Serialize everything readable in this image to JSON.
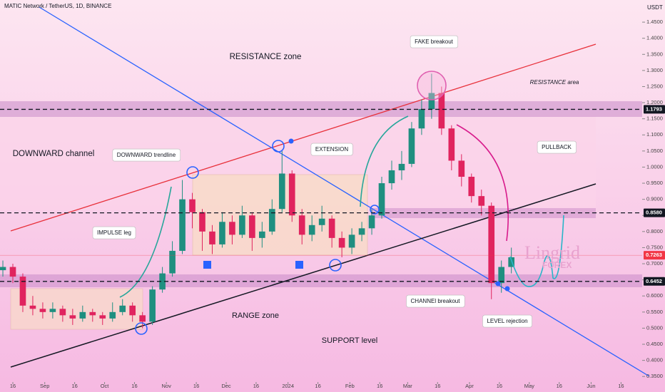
{
  "header": {
    "symbol": "MATIC Network / TetherUS, 1D, BINANCE",
    "currency": "USDT"
  },
  "watermark": {
    "brand": "Lingrid",
    "sub": "FOREX"
  },
  "chart_data": {
    "type": "candlestick",
    "x": [
      -5,
      0,
      5,
      10,
      15,
      20,
      25,
      30,
      35,
      40,
      45,
      50,
      55,
      60,
      65,
      70,
      75,
      80,
      85,
      90,
      95,
      100,
      105,
      110,
      115,
      120,
      125,
      130,
      135,
      140,
      145,
      150,
      155,
      160,
      165,
      170,
      175,
      180,
      185,
      190,
      195,
      200,
      205,
      210,
      215,
      220,
      225,
      230,
      235,
      240,
      245,
      250
    ],
    "open": [
      0.68,
      0.69,
      0.66,
      0.57,
      0.56,
      0.55,
      0.56,
      0.54,
      0.53,
      0.55,
      0.54,
      0.53,
      0.55,
      0.57,
      0.54,
      0.52,
      0.62,
      0.67,
      0.74,
      0.9,
      0.86,
      0.8,
      0.76,
      0.83,
      0.79,
      0.85,
      0.78,
      0.8,
      0.87,
      0.98,
      0.85,
      0.79,
      0.82,
      0.84,
      0.78,
      0.75,
      0.79,
      0.81,
      0.85,
      0.95,
      0.99,
      1.01,
      1.12,
      1.18,
      1.23,
      1.12,
      1.02,
      0.97,
      0.91,
      0.88,
      0.64,
      0.69
    ],
    "high": [
      0.71,
      0.7,
      0.67,
      0.6,
      0.58,
      0.58,
      0.57,
      0.56,
      0.57,
      0.56,
      0.55,
      0.58,
      0.59,
      0.58,
      0.55,
      0.63,
      0.69,
      0.77,
      0.96,
      0.92,
      0.87,
      0.82,
      0.86,
      0.85,
      0.88,
      0.86,
      0.83,
      0.9,
      1.05,
      0.99,
      0.87,
      0.85,
      0.88,
      0.85,
      0.8,
      0.81,
      0.83,
      0.87,
      0.97,
      1.02,
      1.05,
      1.14,
      1.21,
      1.29,
      1.25,
      1.13,
      1.04,
      0.98,
      0.93,
      0.89,
      0.71,
      0.75
    ],
    "low": [
      0.66,
      0.64,
      0.55,
      0.54,
      0.53,
      0.53,
      0.52,
      0.51,
      0.52,
      0.52,
      0.51,
      0.52,
      0.54,
      0.52,
      0.5,
      0.51,
      0.61,
      0.66,
      0.73,
      0.81,
      0.74,
      0.73,
      0.75,
      0.76,
      0.78,
      0.74,
      0.75,
      0.79,
      0.86,
      0.83,
      0.76,
      0.77,
      0.8,
      0.75,
      0.72,
      0.73,
      0.77,
      0.79,
      0.84,
      0.93,
      0.96,
      1.0,
      1.1,
      1.15,
      1.1,
      0.99,
      0.94,
      0.89,
      0.85,
      0.59,
      0.61,
      0.67
    ],
    "close": [
      0.69,
      0.66,
      0.57,
      0.56,
      0.55,
      0.56,
      0.54,
      0.53,
      0.55,
      0.54,
      0.53,
      0.55,
      0.57,
      0.54,
      0.52,
      0.62,
      0.67,
      0.74,
      0.9,
      0.86,
      0.8,
      0.76,
      0.83,
      0.79,
      0.85,
      0.78,
      0.8,
      0.87,
      0.98,
      0.85,
      0.79,
      0.82,
      0.84,
      0.78,
      0.75,
      0.79,
      0.81,
      0.85,
      0.95,
      0.99,
      1.01,
      1.12,
      1.18,
      1.23,
      1.12,
      1.02,
      0.97,
      0.91,
      0.88,
      0.64,
      0.69,
      0.72
    ],
    "up_color": "#1f8f80",
    "down_color": "#e0245e",
    "xlim": [
      -6.44,
      315.6
    ],
    "xticks": [
      {
        "value": 0,
        "label": "16"
      },
      {
        "value": 16,
        "label": "Sep"
      },
      {
        "value": 31,
        "label": "16"
      },
      {
        "value": 46,
        "label": "Oct"
      },
      {
        "value": 61,
        "label": "16"
      },
      {
        "value": 77,
        "label": "Nov"
      },
      {
        "value": 92,
        "label": "16"
      },
      {
        "value": 107,
        "label": "Dec"
      },
      {
        "value": 122,
        "label": "16"
      },
      {
        "value": 138,
        "label": "2024"
      },
      {
        "value": 153,
        "label": "16"
      },
      {
        "value": 169,
        "label": "Feb"
      },
      {
        "value": 184,
        "label": "16"
      },
      {
        "value": 198,
        "label": "Mar"
      },
      {
        "value": 213,
        "label": "16"
      },
      {
        "value": 229,
        "label": "Apr"
      },
      {
        "value": 244,
        "label": "16"
      },
      {
        "value": 259,
        "label": "May"
      },
      {
        "value": 274,
        "label": "16"
      },
      {
        "value": 290,
        "label": "Jun"
      },
      {
        "value": 305,
        "label": "16"
      }
    ],
    "ylim": [
      0.335,
      1.49
    ],
    "yticks": [
      {
        "value": 0.35,
        "label": "0.3500"
      },
      {
        "value": 0.4,
        "label": "0.4000"
      },
      {
        "value": 0.45,
        "label": "0.4500"
      },
      {
        "value": 0.5,
        "label": "0.5000"
      },
      {
        "value": 0.55,
        "label": "0.5500"
      },
      {
        "value": 0.6,
        "label": "0.6000"
      },
      {
        "value": 0.65,
        "label": "0.6500"
      },
      {
        "value": 0.7,
        "label": "0.7000"
      },
      {
        "value": 0.75,
        "label": "0.7500"
      },
      {
        "value": 0.8,
        "label": "0.8000"
      },
      {
        "value": 0.85,
        "label": "0.8500"
      },
      {
        "value": 0.9,
        "label": "0.9000"
      },
      {
        "value": 0.95,
        "label": "0.9500"
      },
      {
        "value": 1.0,
        "label": "1.0000"
      },
      {
        "value": 1.05,
        "label": "1.0500"
      },
      {
        "value": 1.1,
        "label": "1.1000"
      },
      {
        "value": 1.15,
        "label": "1.1500"
      },
      {
        "value": 1.2,
        "label": "1.2000"
      },
      {
        "value": 1.25,
        "label": "1.2500"
      },
      {
        "value": 1.3,
        "label": "1.3000"
      },
      {
        "value": 1.35,
        "label": "1.3500"
      },
      {
        "value": 1.4,
        "label": "1.4000"
      },
      {
        "value": 1.45,
        "label": "1.4500"
      }
    ],
    "levels": [
      {
        "value": 1.1793,
        "color": "#131722",
        "line": "dashed"
      },
      {
        "value": 0.858,
        "label": "0.8580",
        "color": "#131722",
        "line": "dashed"
      },
      {
        "value": 0.7263,
        "color": "#f23645",
        "line": "solid"
      },
      {
        "value": 0.6452,
        "color": "#131722",
        "line": "dashed"
      }
    ],
    "annotations": [
      "RESISTANCE zone",
      "FAKE breakout",
      "RESISTANCE area",
      "DOWNWARD channel",
      "DOWNWARD trendline",
      "EXTENSION",
      "PULLBACK",
      "IMPULSE leg",
      "RANGE zone",
      "SUPPORT level",
      "CHANNEl breakout",
      "LEVEL rejection"
    ]
  }
}
